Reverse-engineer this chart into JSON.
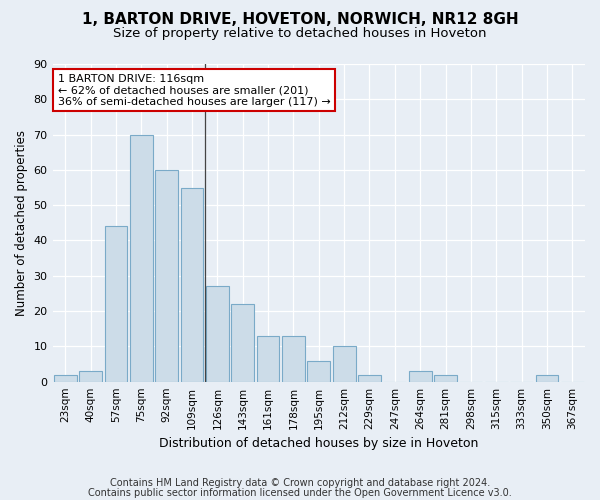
{
  "title": "1, BARTON DRIVE, HOVETON, NORWICH, NR12 8GH",
  "subtitle": "Size of property relative to detached houses in Hoveton",
  "xlabel": "Distribution of detached houses by size in Hoveton",
  "ylabel": "Number of detached properties",
  "categories": [
    "23sqm",
    "40sqm",
    "57sqm",
    "75sqm",
    "92sqm",
    "109sqm",
    "126sqm",
    "143sqm",
    "161sqm",
    "178sqm",
    "195sqm",
    "212sqm",
    "229sqm",
    "247sqm",
    "264sqm",
    "281sqm",
    "298sqm",
    "315sqm",
    "333sqm",
    "350sqm",
    "367sqm"
  ],
  "values": [
    2,
    3,
    44,
    70,
    60,
    55,
    27,
    22,
    13,
    13,
    6,
    10,
    2,
    0,
    3,
    2,
    0,
    0,
    0,
    2,
    0
  ],
  "bar_color": "#ccdce8",
  "bar_edge_color": "#7aaac8",
  "annotation_text": "1 BARTON DRIVE: 116sqm\n← 62% of detached houses are smaller (201)\n36% of semi-detached houses are larger (117) →",
  "annotation_box_facecolor": "#ffffff",
  "annotation_box_edgecolor": "#cc0000",
  "property_line_x": 5.5,
  "ylim": [
    0,
    90
  ],
  "yticks": [
    0,
    10,
    20,
    30,
    40,
    50,
    60,
    70,
    80,
    90
  ],
  "footer_line1": "Contains HM Land Registry data © Crown copyright and database right 2024.",
  "footer_line2": "Contains public sector information licensed under the Open Government Licence v3.0.",
  "bg_color": "#e8eef5",
  "plot_bg_color": "#e8eef5",
  "grid_color": "#ffffff"
}
